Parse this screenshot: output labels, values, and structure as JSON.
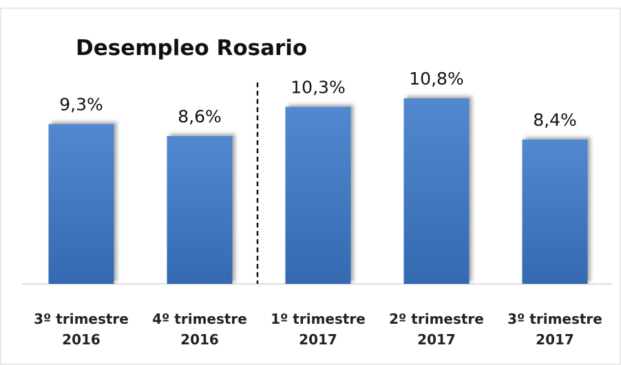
{
  "chart_data": {
    "type": "bar",
    "title": "Desempleo Rosario",
    "categories": [
      "3º trimestre 2016",
      "4º trimestre 2016",
      "1º trimestre 2017",
      "2º trimestre 2017",
      "3º trimestre 2017"
    ],
    "values": [
      9.3,
      8.6,
      10.3,
      10.8,
      8.4
    ],
    "value_labels": [
      "9,3%",
      "8,6%",
      "10,3%",
      "10,8%",
      "8,4%"
    ],
    "color": "#3a78c9",
    "ylim": [
      0,
      16
    ]
  }
}
